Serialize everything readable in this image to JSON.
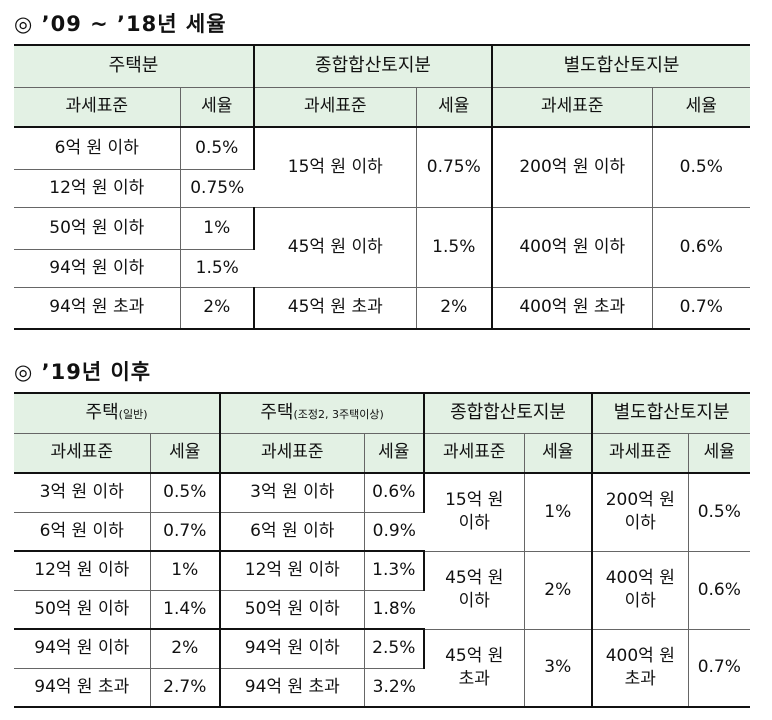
{
  "section1": {
    "title": "◎ ’09 ~ ’18년 세율",
    "groups": [
      "주택분",
      "종합합산토지분",
      "별도합산토지분"
    ],
    "col_base": "과세표준",
    "col_rate": "세율",
    "housing": [
      {
        "base": "6억 원 이하",
        "rate": "0.5%"
      },
      {
        "base": "12억 원 이하",
        "rate": "0.75%"
      },
      {
        "base": "50억 원 이하",
        "rate": "1%"
      },
      {
        "base": "94억 원 이하",
        "rate": "1.5%"
      },
      {
        "base": "94억 원 초과",
        "rate": "2%"
      }
    ],
    "comprehensive": [
      {
        "base": "15억 원 이하",
        "rate": "0.75%"
      },
      {
        "base": "45억 원 이하",
        "rate": "1.5%"
      },
      {
        "base": "45억 원 초과",
        "rate": "2%"
      }
    ],
    "separate": [
      {
        "base": "200억 원 이하",
        "rate": "0.5%"
      },
      {
        "base": "400억 원 이하",
        "rate": "0.6%"
      },
      {
        "base": "400억 원 초과",
        "rate": "0.7%"
      }
    ]
  },
  "section2": {
    "title": "◎ ’19년 이후",
    "group_general": "주택",
    "group_general_note": "(일반)",
    "group_multi": "주택",
    "group_multi_note": "(조정2, 3주택이상)",
    "group_comp": "종합합산토지분",
    "group_sep": "별도합산토지분",
    "col_base": "과세표준",
    "col_rate": "세율",
    "general": [
      {
        "base": "3억 원 이하",
        "rate": "0.5%"
      },
      {
        "base": "6억 원 이하",
        "rate": "0.7%"
      },
      {
        "base": "12억 원 이하",
        "rate": "1%"
      },
      {
        "base": "50억 원 이하",
        "rate": "1.4%"
      },
      {
        "base": "94억 원 이하",
        "rate": "2%"
      },
      {
        "base": "94억 원 초과",
        "rate": "2.7%"
      }
    ],
    "multi": [
      {
        "base": "3억 원 이하",
        "rate": "0.6%"
      },
      {
        "base": "6억 원 이하",
        "rate": "0.9%"
      },
      {
        "base": "12억 원 이하",
        "rate": "1.3%"
      },
      {
        "base": "50억 원 이하",
        "rate": "1.8%"
      },
      {
        "base": "94억 원 이하",
        "rate": "2.5%"
      },
      {
        "base": "94억 원 초과",
        "rate": "3.2%"
      }
    ],
    "comprehensive": [
      {
        "base_line1": "15억 원",
        "base_line2": "이하",
        "rate": "1%"
      },
      {
        "base_line1": "45억 원",
        "base_line2": "이하",
        "rate": "2%"
      },
      {
        "base_line1": "45억 원",
        "base_line2": "초과",
        "rate": "3%"
      }
    ],
    "separate": [
      {
        "base_line1": "200억 원",
        "base_line2": "이하",
        "rate": "0.5%"
      },
      {
        "base_line1": "400억 원",
        "base_line2": "이하",
        "rate": "0.6%"
      },
      {
        "base_line1": "400억 원",
        "base_line2": "초과",
        "rate": "0.7%"
      }
    ]
  }
}
